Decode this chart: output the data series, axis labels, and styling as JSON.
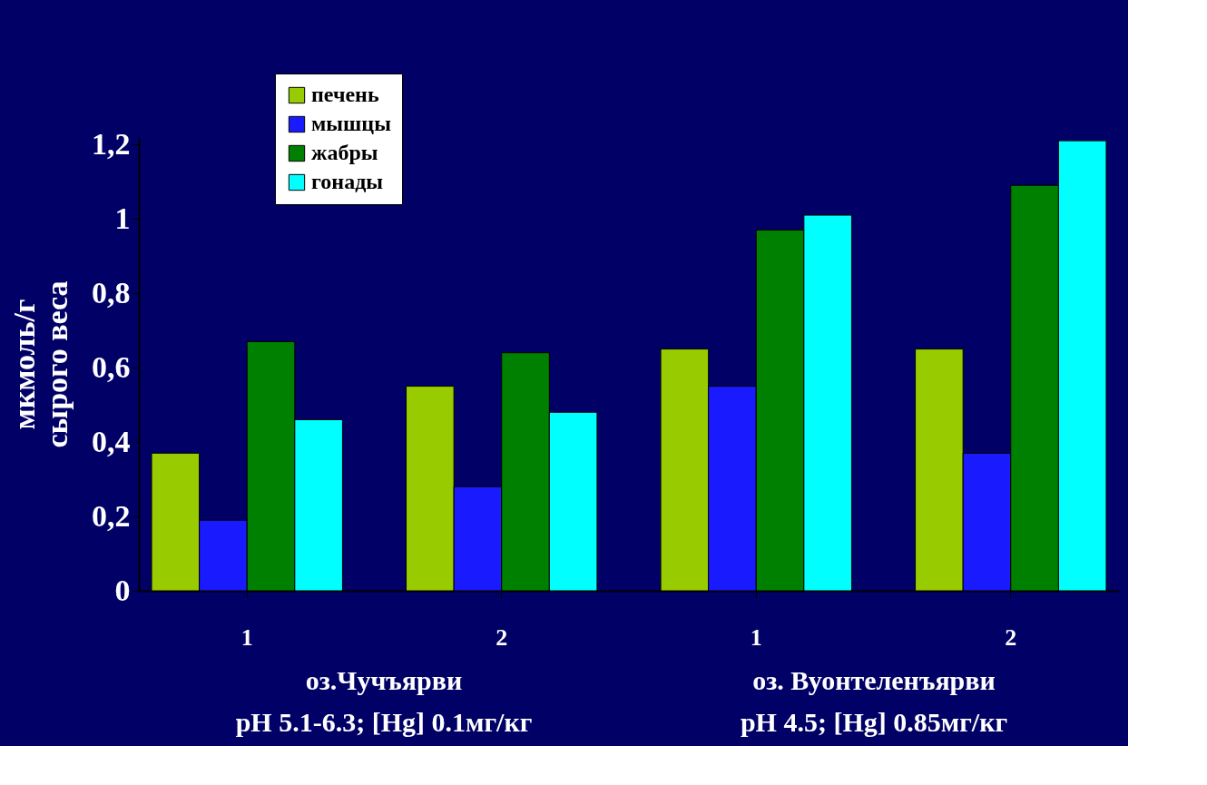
{
  "chart_data": {
    "type": "bar",
    "ylabel": "мкмоль/г сырого веса",
    "categories": [
      "1",
      "2",
      "1",
      "2"
    ],
    "series": [
      {
        "name": "печень",
        "color": "#99cc00",
        "values": [
          0.37,
          0.55,
          0.65,
          0.65
        ]
      },
      {
        "name": "мышцы",
        "color": "#1a1aff",
        "values": [
          0.19,
          0.28,
          0.55,
          0.37
        ]
      },
      {
        "name": "жабры",
        "color": "#008000",
        "values": [
          0.67,
          0.64,
          0.97,
          1.09
        ]
      },
      {
        "name": "гонады",
        "color": "#00ffff",
        "values": [
          0.46,
          0.48,
          1.01,
          1.21
        ]
      }
    ],
    "ylim": [
      0,
      1.22
    ],
    "yticks": [
      0,
      {
        "value": 0.2,
        "label": "0,2"
      },
      {
        "value": 0.4,
        "label": "0,4"
      },
      {
        "value": 0.6,
        "label": "0,6"
      },
      {
        "value": 0.8,
        "label": "0,8"
      },
      1,
      {
        "value": 1.2,
        "label": "1,2"
      }
    ],
    "annotations": [
      "оз.Чучъярви\npH 5.1-6.3; [Hg] 0.1мг/кг",
      "оз. Вуонтеленъярви\npH 4.5; [Hg] 0.85мг/кг"
    ],
    "legend": "top left",
    "grid": false
  }
}
